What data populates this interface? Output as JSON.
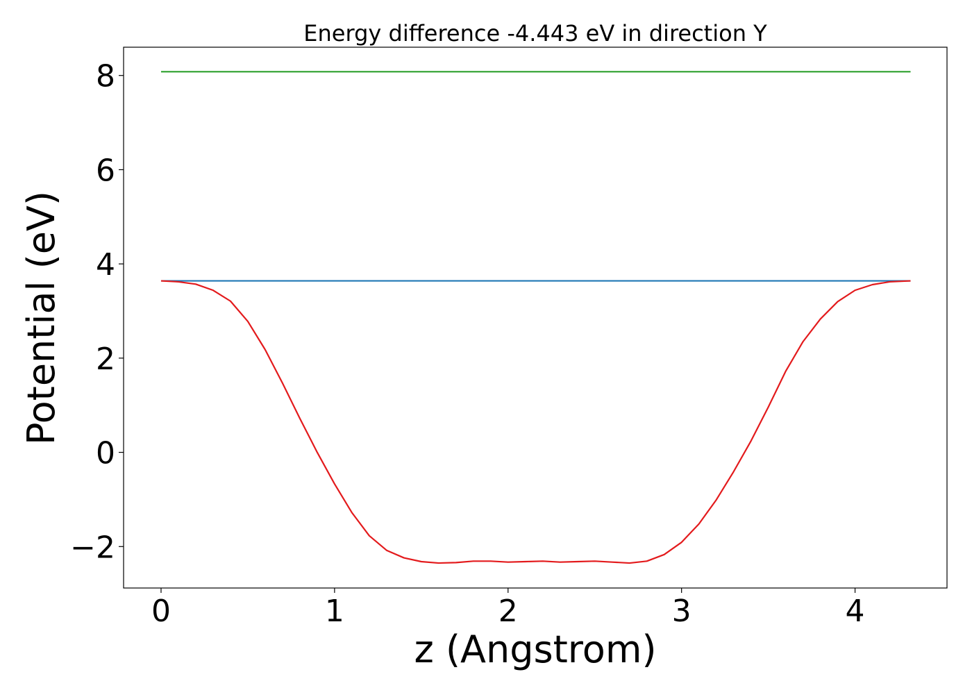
{
  "chart_data": {
    "type": "line",
    "title": "Energy difference -4.443 eV in direction Y",
    "xlabel": "z (Angstrom)",
    "ylabel": "Potential (eV)",
    "xlim": [
      -0.216,
      4.53
    ],
    "ylim": [
      -2.88,
      8.6
    ],
    "x_ticks": [
      0,
      1,
      2,
      3,
      4
    ],
    "x_tick_labels": [
      "0",
      "1",
      "2",
      "3",
      "4"
    ],
    "y_ticks": [
      -2,
      0,
      2,
      4,
      6,
      8
    ],
    "y_tick_labels": [
      "−2",
      "0",
      "2",
      "4",
      "6",
      "8"
    ],
    "grid": false,
    "legend": "none",
    "series": [
      {
        "color": "#2ca02c",
        "x": [
          0,
          4.32
        ],
        "y": [
          8.08,
          8.08
        ]
      },
      {
        "color": "#1f77b4",
        "x": [
          0,
          4.32
        ],
        "y": [
          3.64,
          3.64
        ]
      },
      {
        "color": "#e31a1c",
        "x": [
          0,
          0.1,
          0.2,
          0.3,
          0.4,
          0.5,
          0.6,
          0.7,
          0.8,
          0.9,
          1.0,
          1.1,
          1.2,
          1.3,
          1.4,
          1.5,
          1.6,
          1.7,
          1.8,
          1.9,
          2.0,
          2.1,
          2.2,
          2.3,
          2.4,
          2.5,
          2.6,
          2.7,
          2.8,
          2.9,
          3.0,
          3.1,
          3.2,
          3.3,
          3.4,
          3.5,
          3.6,
          3.7,
          3.8,
          3.9,
          4.0,
          4.1,
          4.2,
          4.32
        ],
        "y": [
          3.64,
          3.62,
          3.57,
          3.44,
          3.21,
          2.78,
          2.18,
          1.47,
          0.72,
          0.0,
          -0.67,
          -1.28,
          -1.77,
          -2.08,
          -2.24,
          -2.32,
          -2.35,
          -2.34,
          -2.31,
          -2.31,
          -2.33,
          -2.32,
          -2.31,
          -2.33,
          -2.32,
          -2.31,
          -2.33,
          -2.35,
          -2.31,
          -2.17,
          -1.91,
          -1.52,
          -1.01,
          -0.41,
          0.24,
          0.96,
          1.72,
          2.35,
          2.83,
          3.2,
          3.44,
          3.56,
          3.62,
          3.64
        ]
      }
    ]
  }
}
